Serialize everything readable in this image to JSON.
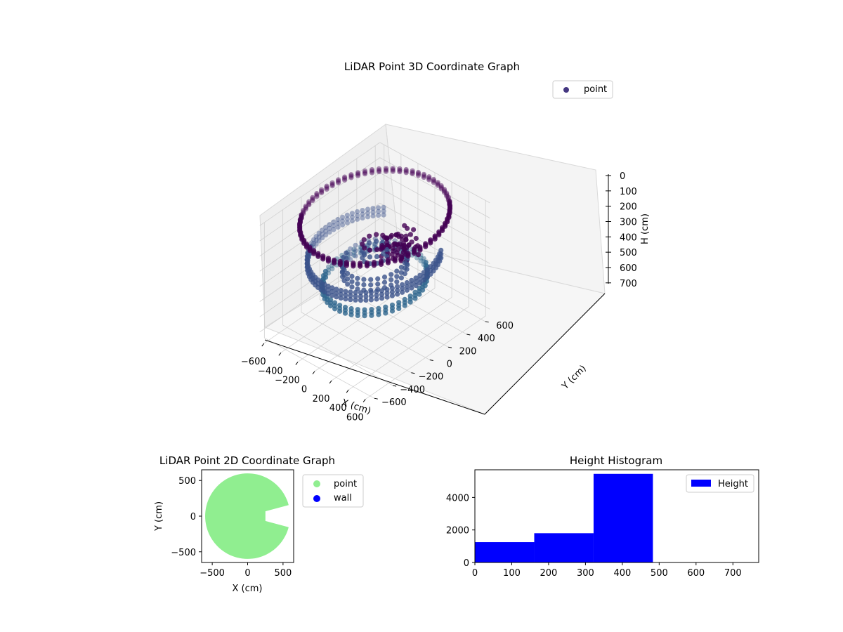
{
  "chart_data": [
    {
      "type": "scatter",
      "projection": "3d",
      "title": "LiDAR Point 3D Coordinate Graph",
      "xlabel": "X (cm)",
      "ylabel": "Y (cm)",
      "zlabel": "H (cm)",
      "xticks": [
        "−600",
        "−400",
        "−200",
        "0",
        "200",
        "400",
        "600"
      ],
      "yticks": [
        "−600",
        "−400",
        "−200",
        "0",
        "200",
        "400",
        "600"
      ],
      "zticks": [
        "0",
        "100",
        "200",
        "300",
        "400",
        "500",
        "600",
        "700"
      ],
      "xlim": [
        -650,
        650
      ],
      "ylim": [
        -650,
        650
      ],
      "zlim": [
        0,
        760
      ],
      "z_inverted": true,
      "legend": {
        "position": "upper-right",
        "entries": [
          "point"
        ]
      },
      "colormap": [
        "#440154",
        "#3b528b",
        "#31688e",
        "#21918c"
      ],
      "series": [
        {
          "name": "point",
          "color": "#453781",
          "rings": [
            {
              "radius": 600,
              "z": 20,
              "height": 20,
              "angle_start": 0,
              "angle_end": 360
            },
            {
              "radius": 540,
              "z": 260,
              "height": 50,
              "angle_start": 130,
              "angle_end": 400
            },
            {
              "radius": 420,
              "z": 430,
              "height": 40,
              "angle_start": 0,
              "angle_end": 360
            },
            {
              "radius": 260,
              "z": 330,
              "height": 70,
              "angle_start": 0,
              "angle_end": 360
            },
            {
              "radius": 100,
              "z": 230,
              "height": 90,
              "angle_start": 0,
              "angle_end": 360
            }
          ]
        }
      ]
    },
    {
      "type": "scatter",
      "title": "LiDAR Point 2D Coordinate Graph",
      "xlabel": "X (cm)",
      "ylabel": "Y (cm)",
      "xticks": [
        "−500",
        "0",
        "500"
      ],
      "yticks": [
        "500",
        "0",
        "−500"
      ],
      "xlim": [
        -650,
        650
      ],
      "ylim": [
        -650,
        650
      ],
      "legend": {
        "position": "outside-right",
        "entries": [
          "point",
          "wall"
        ]
      },
      "series": [
        {
          "name": "point",
          "color": "#90ee90",
          "radius": 600,
          "gap_angle_start": -15,
          "gap_angle_end": 15,
          "gap_inner_radius": 260
        },
        {
          "name": "wall",
          "color": "#0000ff",
          "points": []
        }
      ]
    },
    {
      "type": "bar",
      "title": "Height Histogram",
      "xticks": [
        "0",
        "100",
        "200",
        "300",
        "400",
        "500",
        "600",
        "700"
      ],
      "yticks": [
        "0",
        "2000",
        "4000"
      ],
      "xlim": [
        0,
        770
      ],
      "ylim": [
        0,
        5700
      ],
      "legend": {
        "position": "upper-right",
        "entries": [
          "Height"
        ]
      },
      "series": [
        {
          "name": "Height",
          "color": "#0000ff",
          "bins": [
            {
              "x0": 0,
              "x1": 161,
              "value": 1250
            },
            {
              "x0": 161,
              "x1": 322,
              "value": 1800
            },
            {
              "x0": 322,
              "x1": 483,
              "value": 5450
            },
            {
              "x0": 483,
              "x1": 644,
              "value": 0
            },
            {
              "x0": 644,
              "x1": 770,
              "value": 0
            }
          ]
        }
      ]
    }
  ]
}
